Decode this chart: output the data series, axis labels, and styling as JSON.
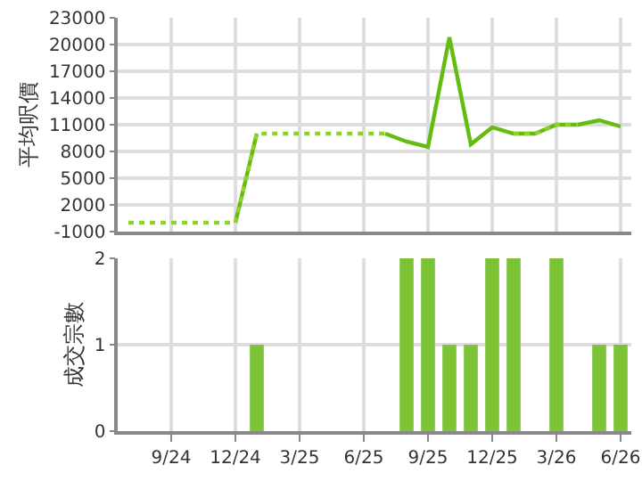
{
  "chart_data": [
    {
      "type": "line",
      "ylabel": "平均呎價",
      "categories": [
        null,
        null,
        null,
        null,
        null,
        null,
        null,
        null,
        null,
        null,
        null,
        null,
        null,
        null,
        null,
        null,
        null,
        null,
        null,
        null,
        null,
        null,
        null,
        null
      ],
      "ylim": [
        -1000,
        23000
      ],
      "yticks": [
        -1000,
        2000,
        5000,
        8000,
        11000,
        14000,
        17000,
        20000,
        23000
      ],
      "grid": true,
      "tick_labels": "y",
      "marker": "none",
      "series": [
        {
          "color": "#66bb11",
          "line_style": "solid",
          "values": [
            null,
            null,
            null,
            null,
            null,
            0,
            10000,
            null,
            null,
            null,
            null,
            null,
            10000,
            9100,
            8500,
            20800,
            8800,
            10700,
            10000,
            10000,
            11000,
            11000,
            11500,
            10800
          ]
        },
        {
          "color": "#8fd32a",
          "line_style": "dotted",
          "values": [
            0,
            0,
            0,
            0,
            0,
            0,
            10000,
            10000,
            10000,
            10000,
            10000,
            10000,
            10000,
            null,
            null,
            null,
            null,
            null,
            10000,
            10000,
            11000,
            11000,
            null,
            null
          ]
        }
      ]
    },
    {
      "type": "bar",
      "ylabel": "成交宗數",
      "categories": [
        null,
        null,
        "9/24",
        null,
        null,
        "12/24",
        null,
        null,
        "3/25",
        null,
        null,
        "6/25",
        null,
        null,
        "9/25",
        null,
        null,
        "12/25",
        null,
        null,
        "3/26",
        null,
        null,
        "6/26"
      ],
      "ylim": [
        0,
        2
      ],
      "yticks": [
        0,
        1,
        2
      ],
      "grid": true,
      "series": [
        {
          "color": "#7cc336",
          "values": [
            0,
            0,
            0,
            0,
            0,
            0,
            1,
            0,
            0,
            0,
            0,
            0,
            0,
            2,
            2,
            1,
            1,
            2,
            2,
            0,
            2,
            0,
            1,
            1
          ]
        }
      ]
    }
  ]
}
